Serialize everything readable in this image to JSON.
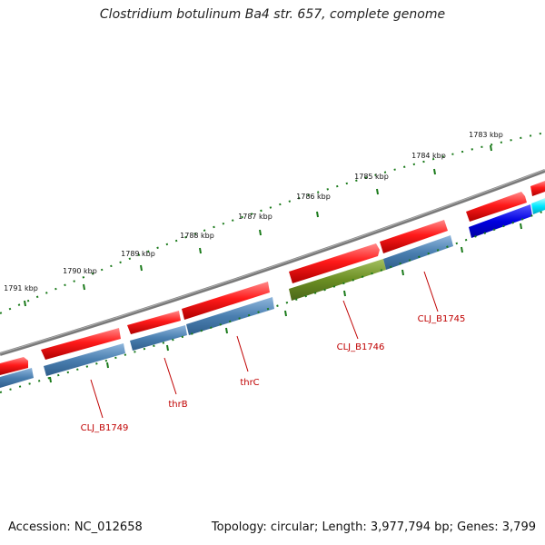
{
  "title": "Clostridium botulinum Ba4 str. 657, complete genome",
  "footer": {
    "accession": "Accession: NC_012658",
    "topology": "Topology: circular; Length: 3,977,794 bp; Genes: 3,799"
  },
  "scale_labels": [
    "1783 kbp",
    "1784 kbp",
    "1785 kbp",
    "1786 kbp",
    "1787 kbp",
    "1788 kbp",
    "1789 kbp",
    "1790 kbp",
    "1791 kbp"
  ],
  "gene_labels": [
    "CLJ_B1745",
    "CLJ_B1746",
    "thrC",
    "thrB",
    "CLJ_B1749"
  ],
  "colors": {
    "backbone": "#808080",
    "cds_forward": "#e00000",
    "gene_bar": "#4a7fb0",
    "gene_bar_highlight": "#6b8e23",
    "rna_blue": "#0000e0",
    "rna_cyan": "#00e8ff",
    "tick": "#1a7a1a",
    "label": "#c00000"
  }
}
